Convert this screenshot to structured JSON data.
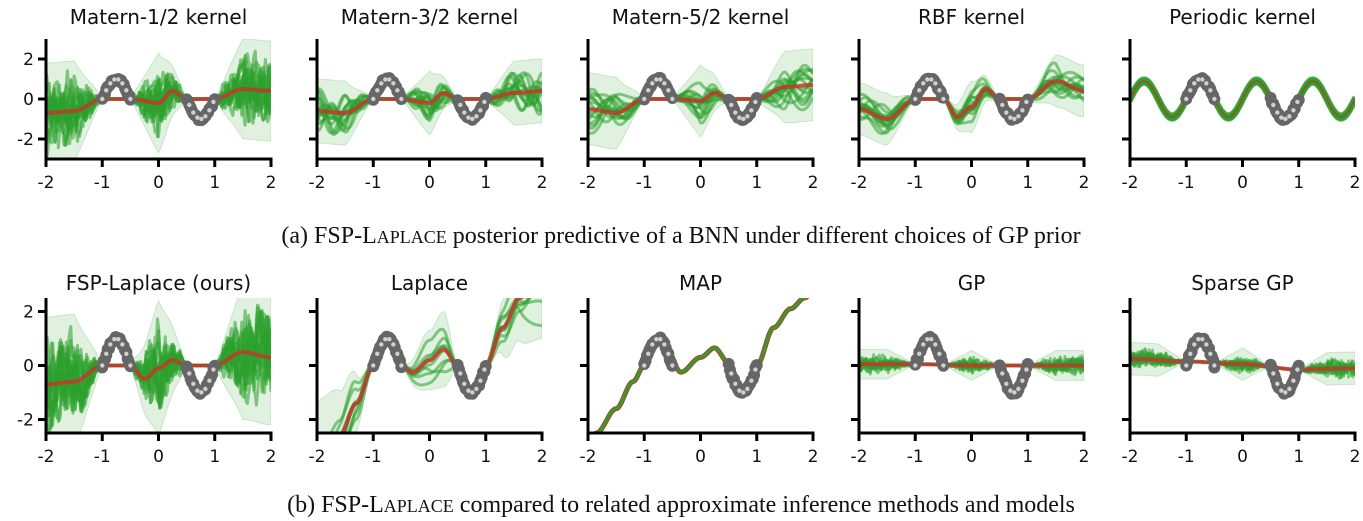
{
  "figure": {
    "captions": [
      {
        "prefix": "(a) FSP-L",
        "smallcaps": "APLACE",
        "suffix": " posterior predictive of a BNN under different choices of GP prior"
      },
      {
        "prefix": "(b) FSP-L",
        "smallcaps": "APLACE",
        "suffix": " compared to related approximate inference methods and models"
      }
    ],
    "colors": {
      "samples": "#2ca02c",
      "band": "#2ca02c",
      "mean": "#c0392b",
      "data_points": "#666666",
      "data_point_center": "#d0d0d0",
      "axes": "#000000"
    }
  },
  "chart_data": [
    {
      "type": "line",
      "row": "a",
      "title": "Matern-1/2 kernel",
      "xlim": [
        -2,
        2
      ],
      "ylim": [
        -3,
        3
      ],
      "xticks": [
        -2,
        -1,
        0,
        1,
        2
      ],
      "xtick_labels": [
        "-2",
        "-1",
        "0",
        "1",
        "2"
      ],
      "yticks": [
        2,
        0,
        -2
      ],
      "ytick_labels": [
        "2",
        "0",
        "-2"
      ],
      "data_function": "y = sin(2*pi*x), x in [-1,-0.5] U [0.5,1]",
      "mean": {
        "x": [
          -2,
          -1.5,
          -1,
          -0.5,
          0,
          0.25,
          0.5,
          1,
          1.5,
          2
        ],
        "y": [
          -0.7,
          -0.6,
          0.0,
          0.0,
          -0.2,
          0.4,
          0.0,
          0.0,
          0.5,
          0.4
        ]
      },
      "band_halfwidth": 2.5,
      "sample_style": "rough",
      "n_samples": 14
    },
    {
      "type": "line",
      "row": "a",
      "title": "Matern-3/2 kernel",
      "xlim": [
        -2,
        2
      ],
      "ylim": [
        -3,
        3
      ],
      "xticks": [
        -2,
        -1,
        0,
        1,
        2
      ],
      "xtick_labels": [
        "-2",
        "-1",
        "0",
        "1",
        "2"
      ],
      "yticks": [
        2,
        0,
        -2
      ],
      "ytick_labels": [],
      "mean": {
        "x": [
          -2,
          -1.5,
          -1,
          -0.5,
          0,
          0.25,
          0.5,
          1,
          1.5,
          2
        ],
        "y": [
          -0.6,
          -0.7,
          0.0,
          0.0,
          -0.2,
          0.3,
          0.0,
          0.0,
          0.3,
          0.4
        ]
      },
      "band_halfwidth": 1.6,
      "sample_style": "medium",
      "n_samples": 14
    },
    {
      "type": "line",
      "row": "a",
      "title": "Matern-5/2 kernel",
      "xlim": [
        -2,
        2
      ],
      "ylim": [
        -3,
        3
      ],
      "xticks": [
        -2,
        -1,
        0,
        1,
        2
      ],
      "xtick_labels": [
        "-2",
        "-1",
        "0",
        "1",
        "2"
      ],
      "yticks": [
        2,
        0,
        -2
      ],
      "ytick_labels": [],
      "mean": {
        "x": [
          -2,
          -1.5,
          -1,
          -0.5,
          0,
          0.25,
          0.5,
          1,
          1.5,
          2
        ],
        "y": [
          -0.5,
          -0.7,
          0.0,
          0.0,
          -0.1,
          0.3,
          0.0,
          0.0,
          0.6,
          0.7
        ]
      },
      "band_halfwidth": 1.8,
      "sample_style": "smooth",
      "n_samples": 14
    },
    {
      "type": "line",
      "row": "a",
      "title": "RBF kernel",
      "xlim": [
        -2,
        2
      ],
      "ylim": [
        -3,
        3
      ],
      "xticks": [
        -2,
        -1,
        0,
        1,
        2
      ],
      "xtick_labels": [
        "-2",
        "-1",
        "0",
        "1",
        "2"
      ],
      "yticks": [
        2,
        0,
        -2
      ],
      "ytick_labels": [],
      "mean": {
        "x": [
          -2,
          -1.5,
          -1,
          -0.5,
          -0.25,
          0,
          0.25,
          0.5,
          1,
          1.5,
          2
        ],
        "y": [
          -0.5,
          -1.0,
          0.0,
          0.0,
          -0.9,
          -0.4,
          0.5,
          0.0,
          0.0,
          0.9,
          0.4
        ]
      },
      "band_halfwidth": 1.3,
      "sample_style": "smooth",
      "n_samples": 14
    },
    {
      "type": "line",
      "row": "a",
      "title": "Periodic kernel",
      "xlim": [
        -2,
        2
      ],
      "ylim": [
        -3,
        3
      ],
      "xticks": [
        -2,
        -1,
        0,
        1,
        2
      ],
      "xtick_labels": [
        "-2",
        "-1",
        "0",
        "1",
        "2"
      ],
      "yticks": [
        2,
        0,
        -2
      ],
      "ytick_labels": [],
      "mean_function": "y = 0.9*sin(2*pi*x)",
      "band_halfwidth": 0.15,
      "sample_style": "periodic",
      "n_samples": 10
    },
    {
      "type": "line",
      "row": "b",
      "title": "FSP-Laplace (ours)",
      "xlim": [
        -2,
        2
      ],
      "ylim": [
        -2.5,
        2.5
      ],
      "xticks": [
        -2,
        -1,
        0,
        1,
        2
      ],
      "xtick_labels": [
        "-2",
        "-1",
        "0",
        "1",
        "2"
      ],
      "yticks": [
        2,
        0,
        -2
      ],
      "ytick_labels": [
        "2",
        "0",
        "-2"
      ],
      "mean": {
        "x": [
          -2,
          -1.5,
          -1,
          -0.5,
          -0.25,
          0,
          0.25,
          0.5,
          1,
          1.5,
          2
        ],
        "y": [
          -0.7,
          -0.6,
          0.0,
          0.0,
          -0.5,
          -0.1,
          0.2,
          0.0,
          0.0,
          0.5,
          0.3
        ]
      },
      "band_halfwidth": 2.5,
      "sample_style": "rough",
      "n_samples": 14
    },
    {
      "type": "line",
      "row": "b",
      "title": "Laplace",
      "xlim": [
        -2,
        2
      ],
      "ylim": [
        -2.5,
        2.5
      ],
      "xticks": [
        -2,
        -1,
        0,
        1,
        2
      ],
      "xtick_labels": [
        "-2",
        "-1",
        "0",
        "1",
        "2"
      ],
      "yticks": [
        2,
        0,
        -2
      ],
      "ytick_labels": [],
      "mean": {
        "x": [
          -2,
          -1.6,
          -1.3,
          -1,
          -0.75,
          -0.5,
          -0.3,
          0,
          0.25,
          0.5,
          0.75,
          1,
          1.3,
          1.6,
          2
        ],
        "y": [
          -3.6,
          -2.6,
          -1.4,
          0.0,
          1.0,
          0.0,
          -0.25,
          0.2,
          0.6,
          0.0,
          -1.0,
          0.0,
          1.4,
          2.5,
          3.4
        ]
      },
      "band": {
        "x": [
          -2,
          -1.5,
          -1,
          -0.5,
          0,
          0.25,
          0.5,
          1,
          1.5,
          2
        ],
        "halfwidth": [
          2.3,
          1.6,
          0.1,
          0.1,
          1.1,
          1.4,
          0.1,
          0.1,
          1.5,
          2.4
        ]
      },
      "sample_style": "laplace",
      "n_samples": 8
    },
    {
      "type": "line",
      "row": "b",
      "title": "MAP",
      "xlim": [
        -2,
        2
      ],
      "ylim": [
        -2.5,
        2.5
      ],
      "xticks": [
        -2,
        -1,
        0,
        1,
        2
      ],
      "xtick_labels": [
        "-2",
        "-1",
        "0",
        "1",
        "2"
      ],
      "yticks": [
        2,
        0,
        -2
      ],
      "ytick_labels": [],
      "mean": {
        "x": [
          -2,
          -1.85,
          -1.5,
          -1.2,
          -1,
          -0.75,
          -0.5,
          -0.35,
          0,
          0.25,
          0.5,
          0.75,
          1,
          1.3,
          1.6,
          1.85,
          2
        ],
        "y": [
          -3.0,
          -2.5,
          -1.6,
          -0.6,
          0.0,
          1.0,
          0.1,
          -0.25,
          0.3,
          0.65,
          0.1,
          -1.0,
          0.0,
          1.4,
          2.1,
          2.5,
          2.7
        ]
      },
      "band_halfwidth": 0.0,
      "sample_style": "map",
      "n_samples": 1
    },
    {
      "type": "line",
      "row": "b",
      "title": "GP",
      "xlim": [
        -2,
        2
      ],
      "ylim": [
        -2.5,
        2.5
      ],
      "xticks": [
        -2,
        -1,
        0,
        1,
        2
      ],
      "xtick_labels": [
        "-2",
        "-1",
        "0",
        "1",
        "2"
      ],
      "yticks": [
        2,
        0,
        -2
      ],
      "ytick_labels": [],
      "mean": {
        "x": [
          -2,
          -1,
          0,
          1,
          2
        ],
        "y": [
          0.05,
          0.05,
          0.0,
          0.0,
          0.0
        ]
      },
      "band_halfwidth": 0.55,
      "sample_style": "noisy",
      "n_samples": 10
    },
    {
      "type": "line",
      "row": "b",
      "title": "Sparse GP",
      "xlim": [
        -2,
        2
      ],
      "ylim": [
        -2.5,
        2.5
      ],
      "xticks": [
        -2,
        -1,
        0,
        1,
        2
      ],
      "xtick_labels": [
        "-2",
        "-1",
        "0",
        "1",
        "2"
      ],
      "yticks": [
        2,
        0,
        -2
      ],
      "ytick_labels": [],
      "mean": {
        "x": [
          -2,
          -1,
          0,
          1,
          2
        ],
        "y": [
          0.25,
          0.15,
          0.05,
          -0.15,
          -0.1
        ]
      },
      "band_halfwidth": 0.6,
      "sample_style": "noisy",
      "n_samples": 10
    }
  ]
}
